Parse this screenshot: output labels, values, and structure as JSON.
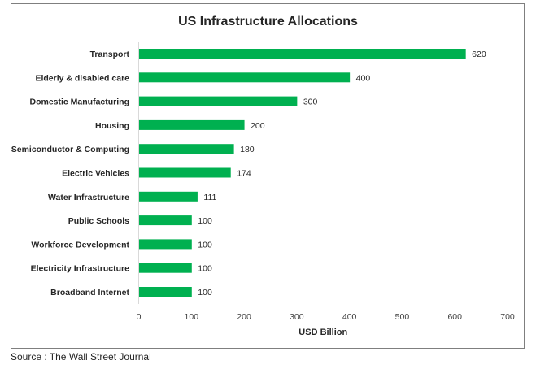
{
  "chart_data": {
    "type": "bar",
    "orientation": "horizontal",
    "title": "US Infrastructure Allocations",
    "categories": [
      "Transport",
      "Elderly & disabled care",
      "Domestic Manufacturing",
      "Housing",
      "Semiconductor & Computing",
      "Electric Vehicles",
      "Water Infrastructure",
      "Public Schools",
      "Workforce Development",
      "Electricity Infrastructure",
      "Broadband Internet"
    ],
    "values": [
      620,
      400,
      300,
      200,
      180,
      174,
      111,
      100,
      100,
      100,
      100
    ],
    "data_labels": [
      "620",
      "400",
      "300",
      "200",
      "180",
      "174",
      "111",
      "100",
      "100",
      "100",
      "100"
    ],
    "xlabel": "USD Billion",
    "ylabel": "",
    "xlim": [
      0,
      700
    ],
    "xticks": [
      0,
      100,
      200,
      300,
      400,
      500,
      600,
      700
    ],
    "xtick_labels": [
      "0",
      "100",
      "200",
      "300",
      "400",
      "500",
      "600",
      "700"
    ],
    "grid": false,
    "legend": "none",
    "bar_color": "#00b050"
  },
  "source": "Source : The Wall Street Journal"
}
